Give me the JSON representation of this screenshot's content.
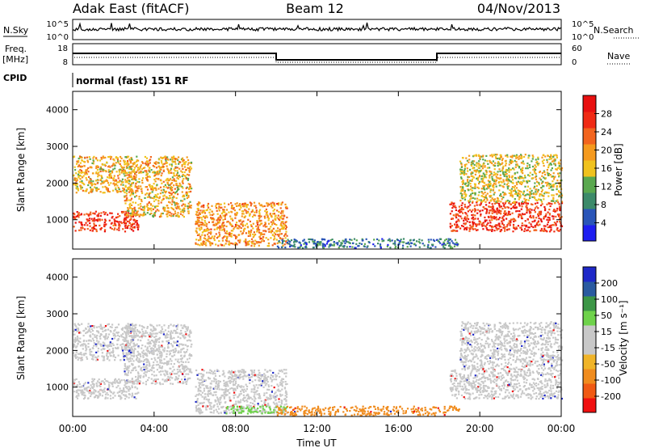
{
  "header": {
    "station": "Adak East (fitACF)",
    "beam": "Beam 12",
    "date": "04/Nov/2013"
  },
  "summary_panels": {
    "nsky": {
      "label": "N.Sky",
      "ticks": [
        "10^5",
        "10^0"
      ],
      "right_label": "N.Search",
      "right_ticks": [
        "10^5",
        "10^0"
      ]
    },
    "freq": {
      "label_top": "Freq.",
      "label_unit": "[MHz]",
      "ticks": [
        "18",
        "8"
      ],
      "right_label": "Nave",
      "right_ticks": [
        "60",
        "0"
      ]
    },
    "cpid": {
      "label": "CPID",
      "program": "normal (fast) 151 RF"
    }
  },
  "colors": {
    "power_scale": [
      "#1e1ef0",
      "#2a55b8",
      "#3c8a6a",
      "#5aa84f",
      "#f0c21e",
      "#f59a1e",
      "#f2641e",
      "#f02a14",
      "#e81010"
    ],
    "velocity_scale": [
      "#f01010",
      "#f05a14",
      "#f08c1e",
      "#f0b428",
      "#c8c8c8",
      "#c8c8c8",
      "#6ed24a",
      "#3c9646",
      "#2a5aa0",
      "#1e28c8"
    ]
  },
  "chart_data": [
    {
      "type": "heatmap",
      "panel": "power",
      "ylabel": "Slant Range [km]",
      "yticks": [
        "1000",
        "2000",
        "3000",
        "4000"
      ],
      "ylim": [
        200,
        4500
      ],
      "colorbar_label": "Power [dB]",
      "colorbar_ticks": [
        "4",
        "8",
        "12",
        "16",
        "20",
        "24",
        "28"
      ],
      "regions": [
        {
          "t": [
            0,
            3.2
          ],
          "range": [
            700,
            1250
          ],
          "value": 26
        },
        {
          "t": [
            0,
            3.0
          ],
          "range": [
            1750,
            2750
          ],
          "value": 18
        },
        {
          "t": [
            2.5,
            5.8
          ],
          "range": [
            1100,
            2750
          ],
          "value": 18
        },
        {
          "t": [
            6.0,
            10.5
          ],
          "range": [
            300,
            1500
          ],
          "value": 20
        },
        {
          "t": [
            10.0,
            19.0
          ],
          "range": [
            250,
            500
          ],
          "value": 8
        },
        {
          "t": [
            18.5,
            24.0
          ],
          "range": [
            700,
            1500
          ],
          "value": 26
        },
        {
          "t": [
            19.0,
            24.0
          ],
          "range": [
            1500,
            2800
          ],
          "value": 16
        }
      ]
    },
    {
      "type": "heatmap",
      "panel": "velocity",
      "ylabel": "Slant Range [km]",
      "yticks": [
        "1000",
        "2000",
        "3000",
        "4000"
      ],
      "ylim": [
        200,
        4500
      ],
      "colorbar_label": "Velocity [m s⁻¹]",
      "colorbar_ticks": [
        "200",
        "100",
        "50",
        "15",
        "-15",
        "-50",
        "-100",
        "-200"
      ],
      "xlabel": "Time UT",
      "xticks": [
        "00:00",
        "04:00",
        "08:00",
        "12:00",
        "16:00",
        "20:00",
        "00:00"
      ],
      "xlim": [
        0,
        24
      ],
      "regions": [
        {
          "t": [
            0,
            3.2
          ],
          "range": [
            700,
            1250
          ],
          "value": 0
        },
        {
          "t": [
            0,
            3.0
          ],
          "range": [
            1750,
            2750
          ],
          "value": 0
        },
        {
          "t": [
            2.5,
            5.8
          ],
          "range": [
            1100,
            2750
          ],
          "value": 0
        },
        {
          "t": [
            6.0,
            10.5
          ],
          "range": [
            300,
            1500
          ],
          "value": 0
        },
        {
          "t": [
            7.5,
            10.5
          ],
          "range": [
            300,
            500
          ],
          "value": 50
        },
        {
          "t": [
            10.0,
            19.0
          ],
          "range": [
            250,
            500
          ],
          "value": -50
        },
        {
          "t": [
            18.5,
            24.0
          ],
          "range": [
            700,
            1500
          ],
          "value": 0
        },
        {
          "t": [
            19.0,
            24.0
          ],
          "range": [
            1500,
            2800
          ],
          "value": 0
        }
      ]
    }
  ]
}
